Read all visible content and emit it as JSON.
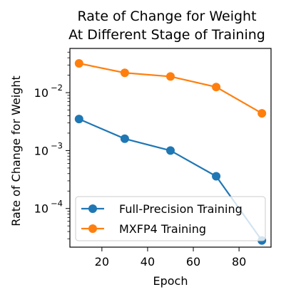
{
  "chart_data": {
    "type": "line",
    "title": [
      "Rate of Change for Weight",
      "At Different Stage of Training"
    ],
    "xlabel": "Epoch",
    "ylabel": "Rate of Change for Weight",
    "yscale": "log",
    "xlim": [
      6,
      94
    ],
    "ylim": [
      2.15e-05,
      0.058
    ],
    "x_ticks": [
      20,
      40,
      60,
      80
    ],
    "x_tick_labels": [
      "20",
      "40",
      "60",
      "80"
    ],
    "y_major_ticks": [
      0.0001,
      0.001,
      0.01
    ],
    "y_tick_labels": [
      {
        "base": "10",
        "exp": "−4"
      },
      {
        "base": "10",
        "exp": "−3"
      },
      {
        "base": "10",
        "exp": "−2"
      }
    ],
    "legend_position": "lower-left",
    "grid": false,
    "series": [
      {
        "name": "Full-Precision Training",
        "color": "#1f77b4",
        "x": [
          10,
          30,
          50,
          70,
          90
        ],
        "y": [
          0.0035,
          0.0016,
          0.001,
          0.00036,
          2.8e-05
        ]
      },
      {
        "name": "MXFP4 Training",
        "color": "#ff7f0e",
        "x": [
          10,
          30,
          50,
          70,
          90
        ],
        "y": [
          0.032,
          0.022,
          0.019,
          0.0125,
          0.0044
        ]
      }
    ]
  }
}
